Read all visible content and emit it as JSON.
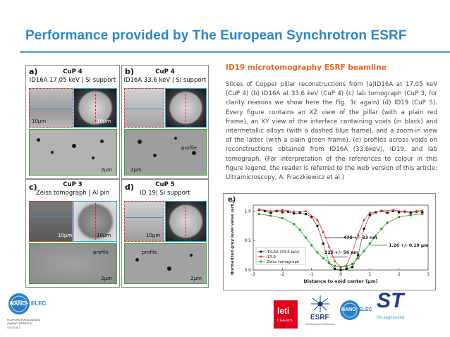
{
  "title": "Performance provided by The European Synchrotron ESRF",
  "panels": [
    {
      "label": "a)",
      "sample": "CuP 4",
      "desc": "ID16A 17.05 keV | Si support",
      "scale1": "10µm",
      "scale2": "10µm",
      "scale3": "2µm"
    },
    {
      "label": "b)",
      "sample": "CuP 4",
      "desc": "ID16A 33.6 keV | Si support",
      "scale1": "",
      "scale2": "",
      "scale3": "2µm",
      "profile": "profile"
    },
    {
      "label": "c)",
      "sample": "CuP 3",
      "desc": "Zeiss tomograph | Al pin",
      "scale1": "10µm",
      "scale2": "10µm",
      "scale3": "2µm",
      "profile": "profile"
    },
    {
      "label": "d)",
      "sample": "CuP 5",
      "desc": "ID 19| Si support",
      "scale1": "10µm",
      "scale2": "",
      "scale3": "2µm",
      "profile": "profile"
    }
  ],
  "section_heading": "ID19 microtomography ESRF beamline",
  "body_text": "Slices of Copper pillar reconstructions from (a)ID16A at 17.05 keV (CuP 4) (b) ID16A at 33.6 keV (CuP 4) (c) lab tomograph (CuP 3, for clarity reasons we show here the Fig. 3c again) (d) ID19 (CuP 5). Every figure contains an XZ view of the pillar (with a plain red frame), an XY view of the interface containing voids (in black) and intermetallic alloys (with a dashed blue frame), and a zoom-in view of the latter (with a plain green frame). (e) profiles across voids on reconstructions obtained from ID16A (33.6keV), ID19, and lab tomograph. (For interpretation of the references to colour in this figure legend, the reader is referred to the web version of this article: Ultramicroscopy, A. Fraczkiewicz et al.)",
  "chart_data": {
    "type": "line",
    "panel_label": "e)",
    "xlabel": "Distance to void center (µm)",
    "ylabel": "Normalized grey level value (arb.)",
    "xlim": [
      -3,
      3
    ],
    "ylim": [
      0.0,
      1.1
    ],
    "xticks": [
      "-3",
      "-2",
      "-1",
      "0",
      "1",
      "2",
      "3"
    ],
    "yticks": [
      "0.0",
      "0.5",
      "1.0"
    ],
    "legend_position": "bottom-left",
    "series": [
      {
        "name": "ID16A (33.6 keV)",
        "color": "#111111",
        "marker": "square",
        "x": [
          -2.8,
          -2.6,
          -2.4,
          -2.2,
          -2.0,
          -1.8,
          -1.6,
          -1.4,
          -1.2,
          -1.0,
          -0.8,
          -0.6,
          -0.4,
          -0.2,
          0.0,
          0.2,
          0.4,
          0.6,
          0.8,
          1.0,
          1.2,
          1.4,
          1.6,
          1.8,
          2.0,
          2.2,
          2.4,
          2.6,
          2.8
        ],
        "y": [
          1.02,
          1.0,
          0.97,
          1.0,
          0.98,
          0.99,
          0.96,
          0.97,
          0.95,
          0.9,
          0.75,
          0.45,
          0.12,
          0.02,
          0.0,
          0.02,
          0.05,
          0.25,
          0.7,
          0.93,
          0.98,
          1.0,
          0.97,
          1.0,
          0.98,
          0.99,
          0.97,
          0.99,
          0.98
        ]
      },
      {
        "name": "ID19",
        "color": "#e03030",
        "marker": "triangle",
        "x": [
          -2.8,
          -2.4,
          -2.0,
          -1.6,
          -1.2,
          -0.8,
          -0.6,
          -0.4,
          -0.2,
          0.0,
          0.2,
          0.4,
          0.6,
          0.8,
          1.0,
          1.4,
          1.8,
          2.2,
          2.6,
          2.8
        ],
        "y": [
          1.03,
          1.0,
          1.02,
          0.99,
          1.0,
          0.85,
          0.65,
          0.4,
          0.15,
          0.05,
          0.08,
          0.3,
          0.6,
          0.85,
          0.97,
          1.0,
          1.02,
          0.99,
          1.0,
          1.01
        ]
      },
      {
        "name": "Zeiss tomograph",
        "color": "#2aa02a",
        "marker": "circle",
        "x": [
          -2.8,
          -2.4,
          -2.0,
          -1.6,
          -1.4,
          -1.2,
          -1.0,
          -0.8,
          -0.6,
          -0.4,
          -0.2,
          0.0,
          0.2,
          0.4,
          0.6,
          0.8,
          1.0,
          1.2,
          1.4,
          1.6,
          2.0,
          2.4,
          2.8
        ],
        "y": [
          0.95,
          0.92,
          0.88,
          0.78,
          0.68,
          0.55,
          0.42,
          0.3,
          0.2,
          0.12,
          0.07,
          0.05,
          0.06,
          0.1,
          0.2,
          0.32,
          0.45,
          0.58,
          0.7,
          0.8,
          0.9,
          0.93,
          0.95
        ]
      }
    ],
    "annotations": [
      {
        "text": "470 +/- 33 nm",
        "x": 0.0,
        "y": 0.55
      },
      {
        "text": "225 +/- 56 nm",
        "x": -0.3,
        "y": 0.3
      },
      {
        "text": "1.26 +/- 0.19 µm",
        "x": 1.7,
        "y": 0.42
      }
    ]
  },
  "logos": {
    "nanoelec_left": "NANO",
    "nanoelec_left_suffix": "ELEC",
    "nanoelec_sub": "PLATFORM FOR ADVANCED CHARACTERISATION",
    "nanoelec_sub2": "GRENOBLE",
    "leti": "leti",
    "leti_sub": "CEA-tech",
    "esrf": "ESRF",
    "esrf_sub": "The European Synchrotron",
    "nanoelec_right": "NANO",
    "nanoelec_right_suffix": "ELEC",
    "st": "ST",
    "st_sub": "life.augmented"
  }
}
